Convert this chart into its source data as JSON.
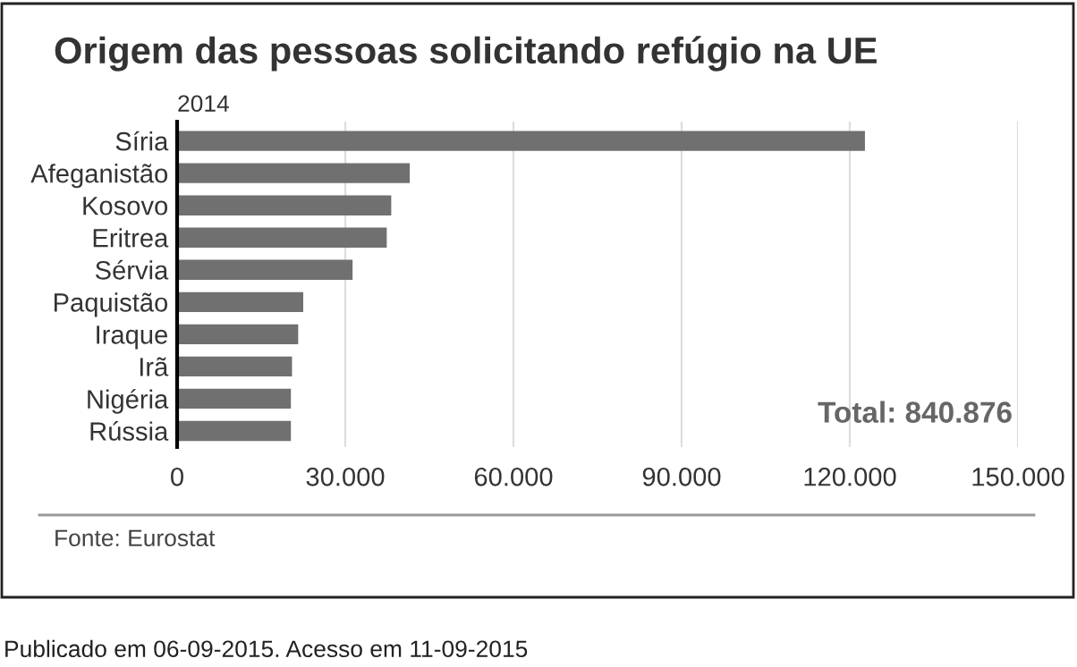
{
  "chart_data": {
    "type": "bar",
    "orientation": "horizontal",
    "title": "Origem das pessoas solicitando refúgio na UE",
    "subtitle": "2014",
    "categories": [
      "Síria",
      "Afeganistão",
      "Kosovo",
      "Eritrea",
      "Sérvia",
      "Paquistão",
      "Iraque",
      "Irã",
      "Nigéria",
      "Rússia"
    ],
    "values": [
      122700,
      41500,
      38200,
      37400,
      31300,
      22500,
      21600,
      20500,
      20300,
      20300
    ],
    "color": "#707070",
    "xlim": [
      0,
      150000
    ],
    "xticks": [
      0,
      {
        "value": 30000,
        "label": "30.000"
      },
      {
        "value": 60000,
        "label": "60.000"
      },
      {
        "value": 90000,
        "label": "90.000"
      },
      {
        "value": 120000,
        "label": "120.000"
      },
      {
        "value": 150000,
        "label": "150.000"
      }
    ],
    "grid": "x",
    "legend": false,
    "annotations": [
      "Total: 840.876",
      "Fonte: Eurostat",
      "Publicado em 06-09-2015. Acesso em 11-09-2015"
    ]
  }
}
